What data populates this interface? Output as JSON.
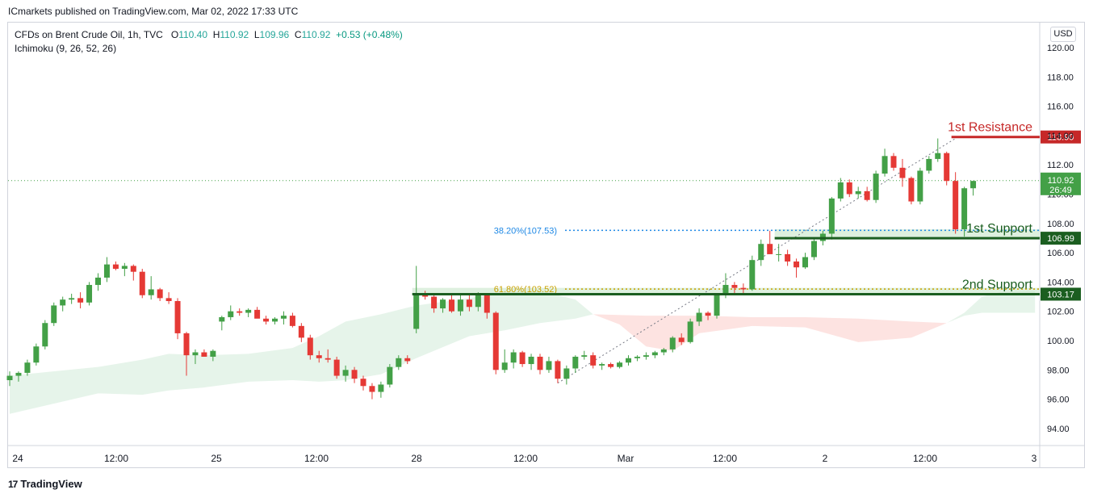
{
  "header": {
    "publisher_line": "ICmarkets published on TradingView.com, Mar 02, 2022 17:33 UTC"
  },
  "legend": {
    "symbol": "CFDs on Brent Crude Oil, 1h, TVC",
    "o_label": "O",
    "o_value": "110.40",
    "h_label": "H",
    "h_value": "110.92",
    "l_label": "L",
    "l_value": "109.96",
    "c_label": "C",
    "c_value": "110.92",
    "change": "+0.53 (+0.48%)",
    "indicator": "Ichimoku (9, 26, 52, 26)"
  },
  "currency_button": "USD",
  "footer": {
    "brand": "TradingView",
    "logo_glyph": "17"
  },
  "colors": {
    "up": "#43a047",
    "down": "#e53935",
    "resistance": "#c62828",
    "support": "#1b5e20",
    "cloud_green": "#e6f4ea",
    "cloud_red": "#fde3e1",
    "fib_blue": "#1e88e5",
    "fib_gold": "#c9a100"
  },
  "chart_data": {
    "type": "candlestick",
    "y_axis": {
      "min": 92.0,
      "max": 121.0,
      "ticks": [
        "120.00",
        "118.00",
        "116.00",
        "114.00",
        "112.00",
        "110.00",
        "108.00",
        "106.00",
        "104.00",
        "102.00",
        "100.00",
        "98.00",
        "96.00",
        "94.00"
      ]
    },
    "x_axis": {
      "labels": [
        "24",
        "12:00",
        "25",
        "12:00",
        "28",
        "12:00",
        "Mar",
        "12:00",
        "2",
        "12:00",
        "3"
      ]
    },
    "candles": [
      [
        97.3,
        97.9,
        96.9,
        97.6
      ],
      [
        97.6,
        97.9,
        97.2,
        97.8
      ],
      [
        97.8,
        98.7,
        97.6,
        98.5
      ],
      [
        98.5,
        99.8,
        98.3,
        99.6
      ],
      [
        99.6,
        101.4,
        99.4,
        101.2
      ],
      [
        101.2,
        102.6,
        101.0,
        102.4
      ],
      [
        102.4,
        103.0,
        102.0,
        102.8
      ],
      [
        102.8,
        103.2,
        102.5,
        102.9
      ],
      [
        102.9,
        103.3,
        102.2,
        102.6
      ],
      [
        102.6,
        104.0,
        102.4,
        103.8
      ],
      [
        103.8,
        104.6,
        103.4,
        104.3
      ],
      [
        104.3,
        105.7,
        104.0,
        105.2
      ],
      [
        105.2,
        105.4,
        104.8,
        104.9
      ],
      [
        104.9,
        105.3,
        104.4,
        105.1
      ],
      [
        105.1,
        105.2,
        104.1,
        104.7
      ],
      [
        104.7,
        104.9,
        102.9,
        103.1
      ],
      [
        103.1,
        104.4,
        102.8,
        103.5
      ],
      [
        103.5,
        103.6,
        102.7,
        102.9
      ],
      [
        102.9,
        103.3,
        102.5,
        102.7
      ],
      [
        102.7,
        102.9,
        100.1,
        100.5
      ],
      [
        100.5,
        100.6,
        97.6,
        99.0
      ],
      [
        99.0,
        99.4,
        98.4,
        99.2
      ],
      [
        99.2,
        99.4,
        98.9,
        98.9
      ],
      [
        98.9,
        99.4,
        98.6,
        99.3
      ],
      [
        101.3,
        101.7,
        100.7,
        101.6
      ],
      [
        101.6,
        102.4,
        101.4,
        102.0
      ],
      [
        102.0,
        102.2,
        101.7,
        101.9
      ],
      [
        101.9,
        102.2,
        101.6,
        102.1
      ],
      [
        102.1,
        102.3,
        101.7,
        101.5
      ],
      [
        101.5,
        101.7,
        101.1,
        101.3
      ],
      [
        101.3,
        101.6,
        101.1,
        101.5
      ],
      [
        101.5,
        102.0,
        101.1,
        101.7
      ],
      [
        101.7,
        101.9,
        100.9,
        101.0
      ],
      [
        101.0,
        101.2,
        99.9,
        100.2
      ],
      [
        100.2,
        100.4,
        98.7,
        99.0
      ],
      [
        99.0,
        99.3,
        98.5,
        98.8
      ],
      [
        98.8,
        99.4,
        98.5,
        98.7
      ],
      [
        98.7,
        98.9,
        97.4,
        97.6
      ],
      [
        97.6,
        98.3,
        97.2,
        98.0
      ],
      [
        98.0,
        98.2,
        97.1,
        97.4
      ],
      [
        97.4,
        97.6,
        96.6,
        96.9
      ],
      [
        96.9,
        97.1,
        96.0,
        96.5
      ],
      [
        96.5,
        97.2,
        96.1,
        97.0
      ],
      [
        97.0,
        98.4,
        96.8,
        98.2
      ],
      [
        98.2,
        99.0,
        98.0,
        98.8
      ],
      [
        98.8,
        99.0,
        98.4,
        98.6
      ],
      [
        100.8,
        105.1,
        100.5,
        103.2
      ],
      [
        103.2,
        103.4,
        102.8,
        103.0
      ],
      [
        103.0,
        103.1,
        101.9,
        102.2
      ],
      [
        102.2,
        102.9,
        101.9,
        102.8
      ],
      [
        102.8,
        103.2,
        101.9,
        102.0
      ],
      [
        102.0,
        103.1,
        101.7,
        102.8
      ],
      [
        102.8,
        103.1,
        102.0,
        102.3
      ],
      [
        102.3,
        103.3,
        102.0,
        103.1
      ],
      [
        103.1,
        103.2,
        101.5,
        101.9
      ],
      [
        101.9,
        102.0,
        97.7,
        98.0
      ],
      [
        98.0,
        99.4,
        97.8,
        98.5
      ],
      [
        98.5,
        99.4,
        98.1,
        99.2
      ],
      [
        99.2,
        99.3,
        98.2,
        98.4
      ],
      [
        98.4,
        99.1,
        98.0,
        98.9
      ],
      [
        98.9,
        99.1,
        97.7,
        98.0
      ],
      [
        98.0,
        98.9,
        97.8,
        98.6
      ],
      [
        98.6,
        98.7,
        97.1,
        97.4
      ],
      [
        97.4,
        98.3,
        97.0,
        98.1
      ],
      [
        98.1,
        99.0,
        97.8,
        98.9
      ],
      [
        98.9,
        99.3,
        98.7,
        99.0
      ],
      [
        99.0,
        99.2,
        98.1,
        98.3
      ],
      [
        98.3,
        98.5,
        98.0,
        98.4
      ],
      [
        98.4,
        98.5,
        98.1,
        98.2
      ],
      [
        98.2,
        98.6,
        98.1,
        98.5
      ],
      [
        98.5,
        99.0,
        98.3,
        98.8
      ],
      [
        98.8,
        99.0,
        98.6,
        98.9
      ],
      [
        98.9,
        99.2,
        98.7,
        99.0
      ],
      [
        99.0,
        99.3,
        98.8,
        99.2
      ],
      [
        99.2,
        99.5,
        99.0,
        99.4
      ],
      [
        99.4,
        100.3,
        99.2,
        100.2
      ],
      [
        100.2,
        100.5,
        99.7,
        99.9
      ],
      [
        99.9,
        101.5,
        99.8,
        101.3
      ],
      [
        101.3,
        102.2,
        101.0,
        101.9
      ],
      [
        101.9,
        102.0,
        101.4,
        101.7
      ],
      [
        101.7,
        103.2,
        101.5,
        103.1
      ],
      [
        103.1,
        104.6,
        102.9,
        103.8
      ],
      [
        103.8,
        104.0,
        103.2,
        103.6
      ],
      [
        103.6,
        103.9,
        103.1,
        103.5
      ],
      [
        103.5,
        105.8,
        103.4,
        105.5
      ],
      [
        105.5,
        106.9,
        105.1,
        106.6
      ],
      [
        106.6,
        107.5,
        105.9,
        105.9
      ],
      [
        105.9,
        106.6,
        105.4,
        105.9
      ],
      [
        105.9,
        106.2,
        105.1,
        105.4
      ],
      [
        105.4,
        105.6,
        104.3,
        105.0
      ],
      [
        105.0,
        106.0,
        104.9,
        105.7
      ],
      [
        105.7,
        107.0,
        105.5,
        106.8
      ],
      [
        106.8,
        107.5,
        106.5,
        107.3
      ],
      [
        107.3,
        109.8,
        106.9,
        109.7
      ],
      [
        109.7,
        111.1,
        109.5,
        110.8
      ],
      [
        110.8,
        111.0,
        109.8,
        110.0
      ],
      [
        110.0,
        110.5,
        109.7,
        110.2
      ],
      [
        110.2,
        110.5,
        109.5,
        109.6
      ],
      [
        109.6,
        111.6,
        109.4,
        111.4
      ],
      [
        111.4,
        113.1,
        111.2,
        112.6
      ],
      [
        112.6,
        112.8,
        111.6,
        111.8
      ],
      [
        111.8,
        112.4,
        110.5,
        111.1
      ],
      [
        111.1,
        111.2,
        109.3,
        109.5
      ],
      [
        109.5,
        111.8,
        109.3,
        111.6
      ],
      [
        111.6,
        112.6,
        111.4,
        112.4
      ],
      [
        112.4,
        113.8,
        112.2,
        112.8
      ],
      [
        112.8,
        112.9,
        110.6,
        110.9
      ],
      [
        110.9,
        111.5,
        107.3,
        107.6
      ],
      [
        107.6,
        110.5,
        107.1,
        110.4
      ],
      [
        110.4,
        110.9,
        109.9,
        110.9
      ]
    ],
    "cloud": {
      "green_upper": [
        [
          0,
          97.6
        ],
        [
          10,
          98.2
        ],
        [
          15,
          98.7
        ],
        [
          18,
          99.1
        ],
        [
          22,
          99.0
        ],
        [
          27,
          99.1
        ],
        [
          32,
          99.5
        ],
        [
          35,
          100.3
        ],
        [
          38,
          101.3
        ],
        [
          42,
          101.8
        ],
        [
          46,
          102.4
        ],
        [
          52,
          102.9
        ],
        [
          56,
          103.3
        ],
        [
          60,
          103.4
        ],
        [
          64,
          102.8
        ],
        [
          66,
          101.8
        ]
      ],
      "green_lower": [
        [
          0,
          95.0
        ],
        [
          10,
          96.4
        ],
        [
          15,
          96.3
        ],
        [
          18,
          96.6
        ],
        [
          22,
          96.8
        ],
        [
          27,
          97.2
        ],
        [
          32,
          97.3
        ],
        [
          35,
          97.2
        ],
        [
          38,
          97.3
        ],
        [
          42,
          97.7
        ],
        [
          46,
          98.8
        ],
        [
          52,
          100.3
        ],
        [
          56,
          100.7
        ],
        [
          60,
          101.2
        ],
        [
          64,
          101.5
        ],
        [
          66,
          101.8
        ]
      ],
      "red_upper": [
        [
          66,
          101.8
        ],
        [
          72,
          101.7
        ],
        [
          78,
          101.7
        ],
        [
          84,
          101.6
        ],
        [
          90,
          101.6
        ],
        [
          96,
          101.5
        ],
        [
          102,
          101.3
        ],
        [
          106,
          101.2
        ]
      ],
      "red_lower": [
        [
          66,
          101.8
        ],
        [
          69,
          101.1
        ],
        [
          72,
          99.6
        ],
        [
          75,
          99.3
        ],
        [
          78,
          100.5
        ],
        [
          84,
          101.0
        ],
        [
          90,
          100.9
        ],
        [
          96,
          99.9
        ],
        [
          102,
          100.2
        ],
        [
          106,
          101.2
        ]
      ],
      "green2_upper": [
        [
          106,
          101.2
        ],
        [
          108,
          101.9
        ],
        [
          110,
          103.0
        ],
        [
          112,
          103.3
        ],
        [
          116,
          103.4
        ]
      ],
      "green2_lower": [
        [
          106,
          101.2
        ],
        [
          108,
          101.7
        ],
        [
          110,
          101.9
        ],
        [
          112,
          101.9
        ],
        [
          116,
          101.9
        ]
      ]
    },
    "current_price": 110.92,
    "countdown": "26:49",
    "levels": [
      {
        "name": "1st Resistance",
        "price": 113.9,
        "label": "113.90",
        "color": "#c62828",
        "start_index": 107
      },
      {
        "name": "1st Support",
        "price": 106.99,
        "label": "106.99",
        "color": "#1b5e20",
        "start_index": 87,
        "zone_top": 107.6
      },
      {
        "name": "2nd Support",
        "price": 103.17,
        "label": "103.17",
        "color": "#1b5e20",
        "start_index": 46,
        "zone_top": 103.6
      }
    ],
    "fib": [
      {
        "label": "38.20%(107.53)",
        "price": 107.53,
        "color": "#1e88e5"
      },
      {
        "label": "61.80%(103.52)",
        "price": 103.52,
        "color": "#c9a100"
      }
    ],
    "trendline": {
      "from": [
        62,
        97.1
      ],
      "to": [
        107,
        113.8
      ]
    }
  }
}
